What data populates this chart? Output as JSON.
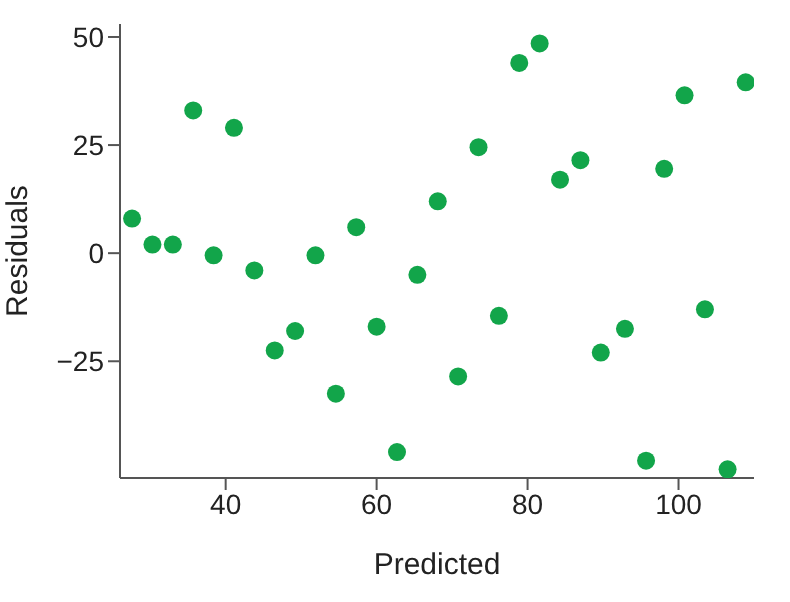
{
  "chart_data": {
    "type": "scatter",
    "xlabel": "Predicted",
    "ylabel": "Residuals",
    "color": "#12a54a",
    "marker": "circle",
    "grid": false,
    "x": [
      27.6,
      30.3,
      33,
      35.7,
      38.4,
      41.1,
      43.8,
      46.5,
      49.2,
      51.9,
      54.6,
      57.3,
      60,
      62.7,
      65.4,
      68.1,
      70.8,
      73.5,
      76.2,
      78.9,
      81.6,
      84.3,
      87,
      89.7,
      92.9,
      95.7,
      98.1,
      100.8,
      103.5,
      106.5,
      108.9
    ],
    "values": [
      8,
      2,
      2,
      33,
      -0.5,
      29,
      -4,
      -22.5,
      -18,
      -0.5,
      -32.5,
      6,
      -17,
      -46,
      -5,
      12,
      -28.5,
      24.5,
      -14.5,
      44,
      48.5,
      17,
      21.5,
      -23,
      -17.5,
      -48,
      19.5,
      36.5,
      -13,
      -50,
      39.5
    ],
    "xlim": [
      26,
      110
    ],
    "ylim": [
      -52,
      53
    ],
    "xticks": [
      40,
      60,
      80,
      100
    ],
    "yticks": [
      -25,
      0,
      25,
      50
    ]
  }
}
